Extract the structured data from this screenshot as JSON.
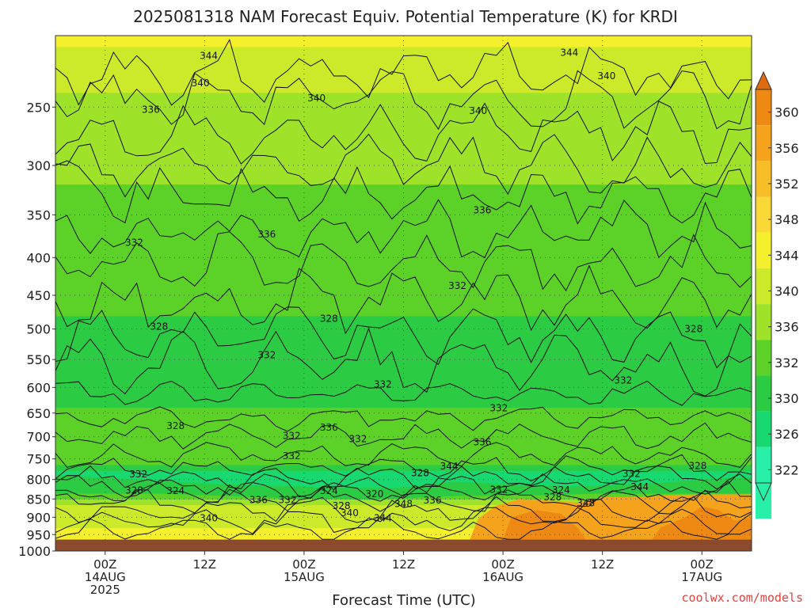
{
  "chart_data": {
    "type": "heatmap",
    "title": "2025081318 NAM Forecast Equiv. Potential Temperature (K) for KRDI",
    "xlabel": "Forecast Time (UTC)",
    "ylabel": "",
    "y_axis": {
      "ticks": [
        250,
        300,
        350,
        400,
        450,
        500,
        550,
        600,
        650,
        700,
        750,
        800,
        850,
        900,
        950,
        1000
      ],
      "range": [
        1000,
        200
      ],
      "scale": "log"
    },
    "x_axis": {
      "ticks": [
        {
          "hour": 6,
          "lines": [
            "00Z",
            "14AUG",
            "2025"
          ]
        },
        {
          "hour": 18,
          "lines": [
            "12Z"
          ]
        },
        {
          "hour": 30,
          "lines": [
            "00Z",
            "15AUG"
          ]
        },
        {
          "hour": 42,
          "lines": [
            "12Z"
          ]
        },
        {
          "hour": 54,
          "lines": [
            "00Z",
            "16AUG"
          ]
        },
        {
          "hour": 66,
          "lines": [
            "12Z"
          ]
        },
        {
          "hour": 78,
          "lines": [
            "00Z",
            "17AUG"
          ]
        }
      ],
      "range": [
        0,
        84
      ]
    },
    "colorbar": {
      "ticks": [
        360,
        356,
        352,
        348,
        344,
        340,
        336,
        332,
        330,
        326,
        322
      ],
      "colors": [
        "#e06a10",
        "#ee8a14",
        "#f5a21c",
        "#f8be28",
        "#fad836",
        "#f4f02c",
        "#cdea2a",
        "#9ee22a",
        "#5cd228",
        "#2ccb44",
        "#18d870",
        "#28f0a8"
      ],
      "extend": "both"
    },
    "surface_pressure": 965,
    "contour_labels": [
      {
        "t": 18.5,
        "p": 213,
        "v": "344"
      },
      {
        "t": 62,
        "p": 211,
        "v": "344"
      },
      {
        "t": 17.5,
        "p": 232,
        "v": "340"
      },
      {
        "t": 31.5,
        "p": 243,
        "v": "340"
      },
      {
        "t": 51,
        "p": 253,
        "v": "340"
      },
      {
        "t": 66.5,
        "p": 227,
        "v": "340"
      },
      {
        "t": 11.5,
        "p": 252,
        "v": "336"
      },
      {
        "t": 25.5,
        "p": 372,
        "v": "336"
      },
      {
        "t": 51.5,
        "p": 345,
        "v": "336"
      },
      {
        "t": 9.5,
        "p": 382,
        "v": "332"
      },
      {
        "t": 48.5,
        "p": 437,
        "v": "332"
      },
      {
        "t": 12.5,
        "p": 496,
        "v": "328"
      },
      {
        "t": 33,
        "p": 484,
        "v": "328"
      },
      {
        "t": 77,
        "p": 500,
        "v": "328"
      },
      {
        "t": 25.5,
        "p": 542,
        "v": "332"
      },
      {
        "t": 39.5,
        "p": 594,
        "v": "332"
      },
      {
        "t": 68.5,
        "p": 587,
        "v": "332"
      },
      {
        "t": 14.5,
        "p": 677,
        "v": "328"
      },
      {
        "t": 28.5,
        "p": 698,
        "v": "332"
      },
      {
        "t": 33,
        "p": 680,
        "v": "336"
      },
      {
        "t": 36.5,
        "p": 705,
        "v": "332"
      },
      {
        "t": 51.5,
        "p": 712,
        "v": "336"
      },
      {
        "t": 53.5,
        "p": 640,
        "v": "332"
      },
      {
        "t": 28.5,
        "p": 743,
        "v": "332"
      },
      {
        "t": 44,
        "p": 784,
        "v": "328"
      },
      {
        "t": 47.5,
        "p": 768,
        "v": "344"
      },
      {
        "t": 69.5,
        "p": 786,
        "v": "332"
      },
      {
        "t": 77.5,
        "p": 767,
        "v": "328"
      },
      {
        "t": 10,
        "p": 787,
        "v": "332"
      },
      {
        "t": 9.5,
        "p": 828,
        "v": "328"
      },
      {
        "t": 14.5,
        "p": 829,
        "v": "324"
      },
      {
        "t": 33,
        "p": 829,
        "v": "324"
      },
      {
        "t": 38.5,
        "p": 837,
        "v": "320"
      },
      {
        "t": 53.5,
        "p": 826,
        "v": "332"
      },
      {
        "t": 61,
        "p": 827,
        "v": "324"
      },
      {
        "t": 60,
        "p": 845,
        "v": "328"
      },
      {
        "t": 70.5,
        "p": 819,
        "v": "344"
      },
      {
        "t": 24.5,
        "p": 853,
        "v": "336"
      },
      {
        "t": 28,
        "p": 853,
        "v": "332"
      },
      {
        "t": 34.5,
        "p": 869,
        "v": "328"
      },
      {
        "t": 35.5,
        "p": 888,
        "v": "340"
      },
      {
        "t": 39.5,
        "p": 903,
        "v": "344"
      },
      {
        "t": 42,
        "p": 863,
        "v": "348"
      },
      {
        "t": 45.5,
        "p": 854,
        "v": "336"
      },
      {
        "t": 64,
        "p": 861,
        "v": "348"
      },
      {
        "t": 18.5,
        "p": 903,
        "v": "340"
      }
    ]
  },
  "credit": "coolwx.com/models"
}
